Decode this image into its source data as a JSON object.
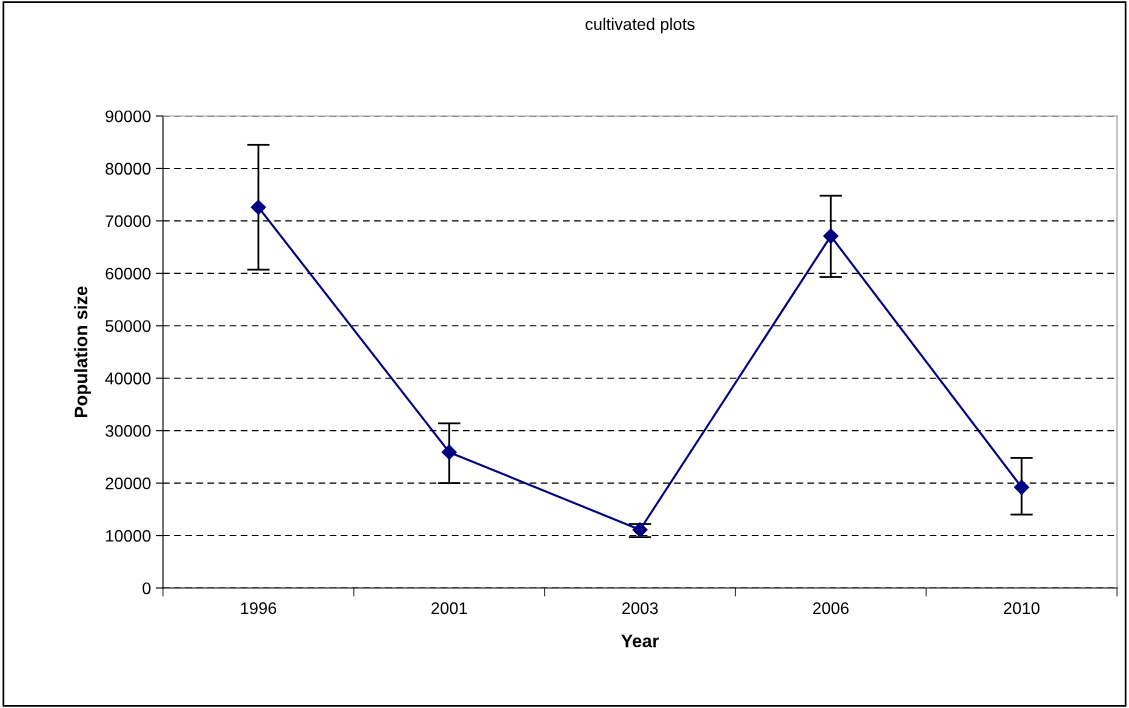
{
  "chart_data": {
    "type": "line",
    "title": "cultivated plots",
    "xlabel": "Year",
    "ylabel": "Population size",
    "categories": [
      "1996",
      "2001",
      "2003",
      "2006",
      "2010"
    ],
    "series": [
      {
        "color": "#000080",
        "values": [
          72600,
          25900,
          11100,
          67100,
          19200
        ],
        "errors": [
          [
            60700,
            84500
          ],
          [
            20000,
            31400
          ],
          [
            9700,
            12200
          ],
          [
            59300,
            74800
          ],
          [
            14000,
            24800
          ]
        ]
      }
    ],
    "ylim": [
      0,
      90000
    ],
    "yticks": [
      0,
      10000,
      20000,
      30000,
      40000,
      50000,
      60000,
      70000,
      80000,
      90000
    ],
    "grid": "y",
    "marker": "diamond",
    "line_style": "solid",
    "legend": false
  }
}
